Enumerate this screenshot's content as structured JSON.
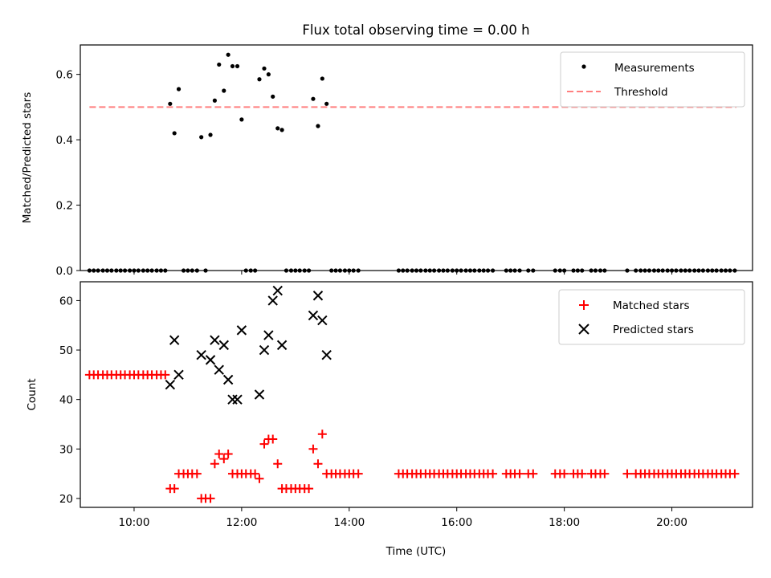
{
  "title": "Flux total observing time = 0.00 h",
  "colors": {
    "measurement": "#000000",
    "threshold": "#ff7f7f",
    "matched": "#ff0000",
    "predicted": "#000000"
  },
  "chart_data": [
    {
      "type": "scatter",
      "panel": "top",
      "ylabel": "Matched/Predicted stars",
      "xlabel": "",
      "xlim": [
        9.0,
        21.5
      ],
      "ylim": [
        0.0,
        0.69
      ],
      "yticks": [
        0.0,
        0.2,
        0.4,
        0.6
      ],
      "ytick_labels": [
        "0.0",
        "0.2",
        "0.4",
        "0.6"
      ],
      "legend": {
        "position": "top-right",
        "entries": [
          "Measurements",
          "Threshold"
        ]
      },
      "threshold": {
        "name": "Threshold",
        "value": 0.5,
        "x_range": [
          9.17,
          21.2
        ],
        "style": "dashed"
      },
      "series": [
        {
          "name": "Measurements",
          "marker": "dot",
          "points": [
            [
              9.17,
              0
            ],
            [
              9.25,
              0
            ],
            [
              9.33,
              0
            ],
            [
              9.42,
              0
            ],
            [
              9.5,
              0
            ],
            [
              9.58,
              0
            ],
            [
              9.67,
              0
            ],
            [
              9.75,
              0
            ],
            [
              9.83,
              0
            ],
            [
              9.92,
              0
            ],
            [
              10.0,
              0
            ],
            [
              10.08,
              0
            ],
            [
              10.17,
              0
            ],
            [
              10.25,
              0
            ],
            [
              10.33,
              0
            ],
            [
              10.42,
              0
            ],
            [
              10.5,
              0
            ],
            [
              10.58,
              0
            ],
            [
              10.67,
              0.51
            ],
            [
              10.75,
              0.42
            ],
            [
              10.83,
              0.555
            ],
            [
              10.92,
              0
            ],
            [
              11.0,
              0
            ],
            [
              11.08,
              0
            ],
            [
              11.17,
              0
            ],
            [
              11.25,
              0.408
            ],
            [
              11.33,
              0
            ],
            [
              11.42,
              0.415
            ],
            [
              11.5,
              0.52
            ],
            [
              11.58,
              0.63
            ],
            [
              11.67,
              0.55
            ],
            [
              11.75,
              0.66
            ],
            [
              11.83,
              0.625
            ],
            [
              11.92,
              0.625
            ],
            [
              12.0,
              0.462
            ],
            [
              12.08,
              0
            ],
            [
              12.17,
              0
            ],
            [
              12.25,
              0
            ],
            [
              12.33,
              0.585
            ],
            [
              12.42,
              0.618
            ],
            [
              12.5,
              0.6
            ],
            [
              12.58,
              0.532
            ],
            [
              12.67,
              0.435
            ],
            [
              12.75,
              0.43
            ],
            [
              12.83,
              0
            ],
            [
              12.92,
              0
            ],
            [
              13.0,
              0
            ],
            [
              13.08,
              0
            ],
            [
              13.17,
              0
            ],
            [
              13.25,
              0
            ],
            [
              13.33,
              0.525
            ],
            [
              13.42,
              0.442
            ],
            [
              13.5,
              0.587
            ],
            [
              13.58,
              0.51
            ],
            [
              13.67,
              0
            ],
            [
              13.75,
              0
            ],
            [
              13.83,
              0
            ],
            [
              13.92,
              0
            ],
            [
              14.0,
              0
            ],
            [
              14.08,
              0
            ],
            [
              14.17,
              0
            ],
            [
              14.92,
              0
            ],
            [
              15.0,
              0
            ],
            [
              15.08,
              0
            ],
            [
              15.17,
              0
            ],
            [
              15.25,
              0
            ],
            [
              15.33,
              0
            ],
            [
              15.42,
              0
            ],
            [
              15.5,
              0
            ],
            [
              15.58,
              0
            ],
            [
              15.67,
              0
            ],
            [
              15.75,
              0
            ],
            [
              15.83,
              0
            ],
            [
              15.92,
              0
            ],
            [
              16.0,
              0
            ],
            [
              16.08,
              0
            ],
            [
              16.17,
              0
            ],
            [
              16.25,
              0
            ],
            [
              16.33,
              0
            ],
            [
              16.42,
              0
            ],
            [
              16.5,
              0
            ],
            [
              16.58,
              0
            ],
            [
              16.67,
              0
            ],
            [
              16.92,
              0
            ],
            [
              17.0,
              0
            ],
            [
              17.08,
              0
            ],
            [
              17.17,
              0
            ],
            [
              17.33,
              0
            ],
            [
              17.42,
              0
            ],
            [
              17.83,
              0
            ],
            [
              17.92,
              0
            ],
            [
              18.0,
              0
            ],
            [
              18.17,
              0
            ],
            [
              18.25,
              0
            ],
            [
              18.33,
              0
            ],
            [
              18.5,
              0
            ],
            [
              18.58,
              0
            ],
            [
              18.67,
              0
            ],
            [
              18.75,
              0
            ],
            [
              19.17,
              0
            ],
            [
              19.33,
              0
            ],
            [
              19.42,
              0
            ],
            [
              19.5,
              0
            ],
            [
              19.58,
              0
            ],
            [
              19.67,
              0
            ],
            [
              19.75,
              0
            ],
            [
              19.83,
              0
            ],
            [
              19.92,
              0
            ],
            [
              20.0,
              0
            ],
            [
              20.08,
              0
            ],
            [
              20.17,
              0
            ],
            [
              20.25,
              0
            ],
            [
              20.33,
              0
            ],
            [
              20.42,
              0
            ],
            [
              20.5,
              0
            ],
            [
              20.58,
              0
            ],
            [
              20.67,
              0
            ],
            [
              20.75,
              0
            ],
            [
              20.83,
              0
            ],
            [
              20.92,
              0
            ],
            [
              21.0,
              0
            ],
            [
              21.08,
              0
            ],
            [
              21.17,
              0
            ]
          ]
        }
      ]
    },
    {
      "type": "scatter",
      "panel": "bottom",
      "ylabel": "Count",
      "xlabel": "Time (UTC)",
      "xlim": [
        9.0,
        21.5
      ],
      "ylim": [
        18.2,
        63.8
      ],
      "xticks": [
        10,
        12,
        14,
        16,
        18,
        20
      ],
      "xtick_labels": [
        "10:00",
        "12:00",
        "14:00",
        "16:00",
        "18:00",
        "20:00"
      ],
      "yticks": [
        20,
        30,
        40,
        50,
        60
      ],
      "ytick_labels": [
        "20",
        "30",
        "40",
        "50",
        "60"
      ],
      "legend": {
        "position": "top-right",
        "entries": [
          "Matched stars",
          "Predicted stars"
        ]
      },
      "series": [
        {
          "name": "Matched stars",
          "marker": "plus",
          "points": [
            [
              9.17,
              45
            ],
            [
              9.25,
              45
            ],
            [
              9.33,
              45
            ],
            [
              9.42,
              45
            ],
            [
              9.5,
              45
            ],
            [
              9.58,
              45
            ],
            [
              9.67,
              45
            ],
            [
              9.75,
              45
            ],
            [
              9.83,
              45
            ],
            [
              9.92,
              45
            ],
            [
              10.0,
              45
            ],
            [
              10.08,
              45
            ],
            [
              10.17,
              45
            ],
            [
              10.25,
              45
            ],
            [
              10.33,
              45
            ],
            [
              10.42,
              45
            ],
            [
              10.5,
              45
            ],
            [
              10.58,
              45
            ],
            [
              10.67,
              22
            ],
            [
              10.75,
              22
            ],
            [
              10.83,
              25
            ],
            [
              10.92,
              25
            ],
            [
              11.0,
              25
            ],
            [
              11.08,
              25
            ],
            [
              11.17,
              25
            ],
            [
              11.25,
              20
            ],
            [
              11.33,
              20
            ],
            [
              11.42,
              20
            ],
            [
              11.5,
              27
            ],
            [
              11.58,
              29
            ],
            [
              11.67,
              28
            ],
            [
              11.75,
              29
            ],
            [
              11.83,
              25
            ],
            [
              11.92,
              25
            ],
            [
              12.0,
              25
            ],
            [
              12.08,
              25
            ],
            [
              12.17,
              25
            ],
            [
              12.25,
              25
            ],
            [
              12.33,
              24
            ],
            [
              12.42,
              31
            ],
            [
              12.5,
              32
            ],
            [
              12.58,
              32
            ],
            [
              12.67,
              27
            ],
            [
              12.75,
              22
            ],
            [
              12.83,
              22
            ],
            [
              12.92,
              22
            ],
            [
              13.0,
              22
            ],
            [
              13.08,
              22
            ],
            [
              13.17,
              22
            ],
            [
              13.25,
              22
            ],
            [
              13.33,
              30
            ],
            [
              13.42,
              27
            ],
            [
              13.5,
              33
            ],
            [
              13.58,
              25
            ],
            [
              13.67,
              25
            ],
            [
              13.75,
              25
            ],
            [
              13.83,
              25
            ],
            [
              13.92,
              25
            ],
            [
              14.0,
              25
            ],
            [
              14.08,
              25
            ],
            [
              14.17,
              25
            ],
            [
              14.92,
              25
            ],
            [
              15.0,
              25
            ],
            [
              15.08,
              25
            ],
            [
              15.17,
              25
            ],
            [
              15.25,
              25
            ],
            [
              15.33,
              25
            ],
            [
              15.42,
              25
            ],
            [
              15.5,
              25
            ],
            [
              15.58,
              25
            ],
            [
              15.67,
              25
            ],
            [
              15.75,
              25
            ],
            [
              15.83,
              25
            ],
            [
              15.92,
              25
            ],
            [
              16.0,
              25
            ],
            [
              16.08,
              25
            ],
            [
              16.17,
              25
            ],
            [
              16.25,
              25
            ],
            [
              16.33,
              25
            ],
            [
              16.42,
              25
            ],
            [
              16.5,
              25
            ],
            [
              16.58,
              25
            ],
            [
              16.67,
              25
            ],
            [
              16.92,
              25
            ],
            [
              17.0,
              25
            ],
            [
              17.08,
              25
            ],
            [
              17.17,
              25
            ],
            [
              17.33,
              25
            ],
            [
              17.42,
              25
            ],
            [
              17.83,
              25
            ],
            [
              17.92,
              25
            ],
            [
              18.0,
              25
            ],
            [
              18.17,
              25
            ],
            [
              18.25,
              25
            ],
            [
              18.33,
              25
            ],
            [
              18.5,
              25
            ],
            [
              18.58,
              25
            ],
            [
              18.67,
              25
            ],
            [
              18.75,
              25
            ],
            [
              19.17,
              25
            ],
            [
              19.33,
              25
            ],
            [
              19.42,
              25
            ],
            [
              19.5,
              25
            ],
            [
              19.58,
              25
            ],
            [
              19.67,
              25
            ],
            [
              19.75,
              25
            ],
            [
              19.83,
              25
            ],
            [
              19.92,
              25
            ],
            [
              20.0,
              25
            ],
            [
              20.08,
              25
            ],
            [
              20.17,
              25
            ],
            [
              20.25,
              25
            ],
            [
              20.33,
              25
            ],
            [
              20.42,
              25
            ],
            [
              20.5,
              25
            ],
            [
              20.58,
              25
            ],
            [
              20.67,
              25
            ],
            [
              20.75,
              25
            ],
            [
              20.83,
              25
            ],
            [
              20.92,
              25
            ],
            [
              21.0,
              25
            ],
            [
              21.08,
              25
            ],
            [
              21.17,
              25
            ]
          ]
        },
        {
          "name": "Predicted stars",
          "marker": "x",
          "points": [
            [
              10.67,
              43
            ],
            [
              10.75,
              52
            ],
            [
              10.83,
              45
            ],
            [
              11.25,
              49
            ],
            [
              11.42,
              48
            ],
            [
              11.5,
              52
            ],
            [
              11.58,
              46
            ],
            [
              11.67,
              51
            ],
            [
              11.75,
              44
            ],
            [
              11.83,
              40
            ],
            [
              11.92,
              40
            ],
            [
              12.0,
              54
            ],
            [
              12.33,
              41
            ],
            [
              12.42,
              50
            ],
            [
              12.5,
              53
            ],
            [
              12.58,
              60
            ],
            [
              12.67,
              62
            ],
            [
              12.75,
              51
            ],
            [
              13.33,
              57
            ],
            [
              13.42,
              61
            ],
            [
              13.5,
              56
            ],
            [
              13.58,
              49
            ]
          ]
        }
      ]
    }
  ]
}
